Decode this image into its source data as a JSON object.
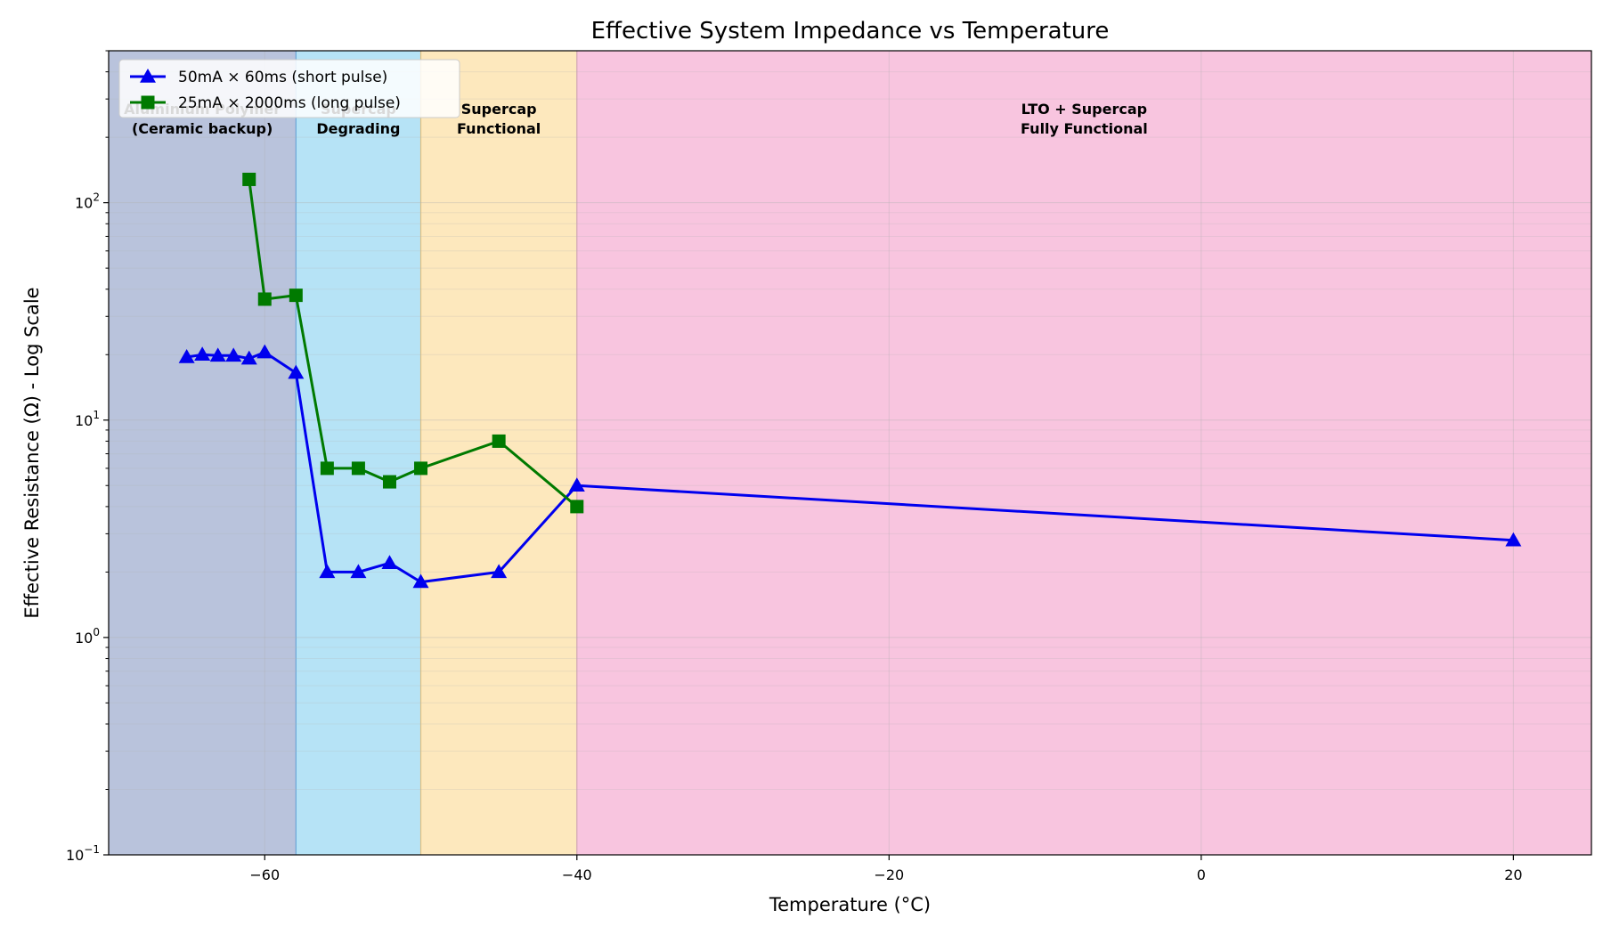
{
  "chart_data": {
    "type": "line",
    "title": "Effective System Impedance vs Temperature",
    "xlabel": "Temperature (°C)",
    "ylabel": "Effective Resistance (Ω) - Log Scale",
    "xlim": [
      -70,
      25
    ],
    "ylim": [
      0.1,
      500
    ],
    "yscale": "log",
    "grid": true,
    "legend_position": "top-left",
    "x_ticks": [
      -60,
      -40,
      -20,
      0,
      20
    ],
    "x_tick_labels": [
      "−60",
      "−40",
      "−20",
      "0",
      "20"
    ],
    "y_ticks": [
      {
        "value": 0.1,
        "base": "10",
        "exp": "−1"
      },
      {
        "value": 1,
        "base": "10",
        "exp": "0"
      },
      {
        "value": 10,
        "base": "10",
        "exp": "1"
      },
      {
        "value": 100,
        "base": "10",
        "exp": "2"
      }
    ],
    "regions": [
      {
        "x0": -70,
        "x1": -58,
        "color": "#b9c3dc",
        "label_lines": [
          "Aluminium Polymer",
          "(Ceramic backup)"
        ]
      },
      {
        "x0": -58,
        "x1": -50,
        "color": "#b6e3f6",
        "label_lines": [
          "Supercap",
          "Degrading"
        ]
      },
      {
        "x0": -50,
        "x1": -40,
        "color": "#fde8bd",
        "label_lines": [
          "Supercap",
          "Functional"
        ]
      },
      {
        "x0": -40,
        "x1": 25,
        "color": "#f8c5df",
        "label_lines": [
          "LTO + Supercap",
          "Fully Functional"
        ]
      }
    ],
    "series": [
      {
        "name": "50mA × 60ms (short pulse)",
        "color": "#0000ee",
        "marker": "triangle",
        "x": [
          -65,
          -64,
          -63,
          -62,
          -61,
          -60,
          -58,
          -56,
          -54,
          -52,
          -50,
          -45,
          -40,
          20
        ],
        "y": [
          19.5,
          20.0,
          19.8,
          19.8,
          19.2,
          20.5,
          16.5,
          2.0,
          2.0,
          2.2,
          1.8,
          2.0,
          5.0,
          2.8
        ]
      },
      {
        "name": "25mA × 2000ms (long pulse)",
        "color": "#007a00",
        "marker": "square",
        "x": [
          -61,
          -60,
          -58,
          -56,
          -54,
          -52,
          -50,
          -45,
          -40
        ],
        "y": [
          128,
          36,
          37.5,
          6.0,
          6.0,
          5.2,
          6.0,
          8.0,
          4.0
        ]
      }
    ]
  }
}
